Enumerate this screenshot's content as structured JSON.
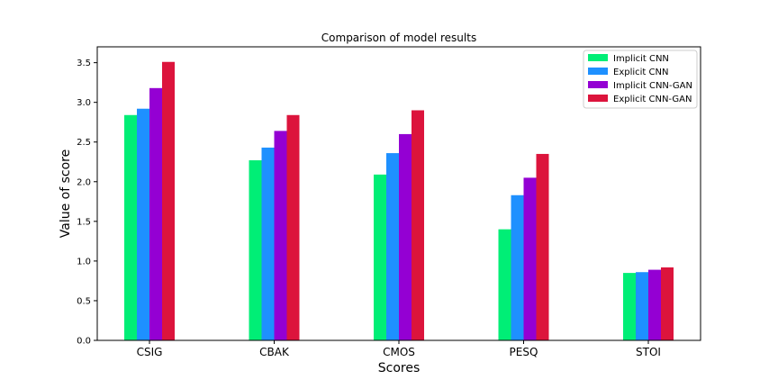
{
  "chart_data": {
    "type": "bar",
    "title": "Comparison of model results",
    "xlabel": "Scores",
    "ylabel": "Value of score",
    "categories": [
      "CSIG",
      "CBAK",
      "CMOS",
      "PESQ",
      "STOI"
    ],
    "series": [
      {
        "name": "Implicit CNN",
        "color": "#00ee76",
        "values": [
          2.84,
          2.27,
          2.09,
          1.4,
          0.85
        ]
      },
      {
        "name": "Explicit CNN",
        "color": "#1e90ff",
        "values": [
          2.92,
          2.43,
          2.36,
          1.83,
          0.86
        ]
      },
      {
        "name": "Implicit CNN-GAN",
        "color": "#9400d3",
        "values": [
          3.18,
          2.64,
          2.6,
          2.05,
          0.89
        ]
      },
      {
        "name": "Explicit CNN-GAN",
        "color": "#dc143c",
        "values": [
          3.51,
          2.84,
          2.9,
          2.35,
          0.92
        ]
      }
    ],
    "ylim": [
      0,
      3.7
    ],
    "yticks": [
      "0.0",
      "0.5",
      "1.0",
      "1.5",
      "2.0",
      "2.5",
      "3.0",
      "3.5"
    ],
    "grid": false,
    "legend_position": "top-right"
  }
}
